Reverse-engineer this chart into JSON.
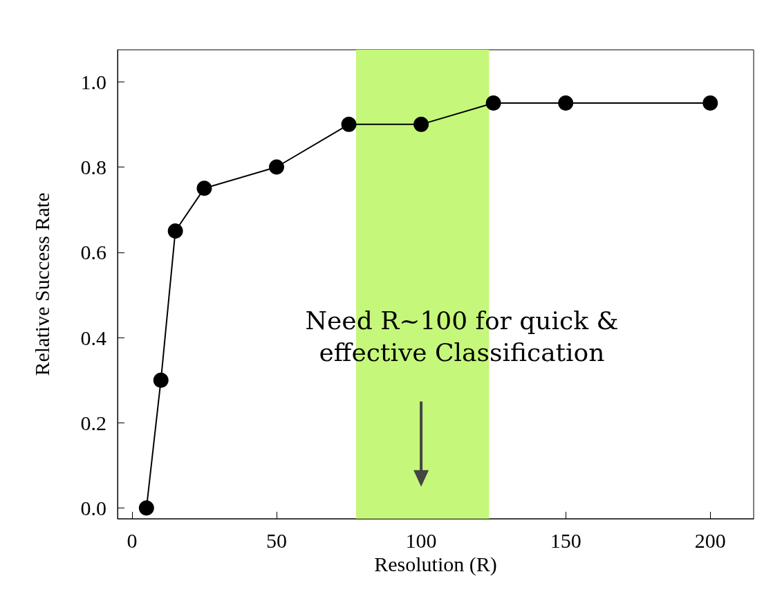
{
  "chart_data": {
    "type": "line",
    "xlabel": "Resolution (R)",
    "ylabel": "Relative Success Rate",
    "x": [
      5,
      10,
      15,
      25,
      50,
      75,
      100,
      125,
      150,
      200
    ],
    "series": [
      {
        "color": "#000000",
        "values": [
          0,
          0.3,
          0.65,
          0.75,
          0.8,
          0.9,
          0.9,
          0.95,
          0.95,
          0.95
        ]
      }
    ],
    "xlim": [
      -5,
      215
    ],
    "xticks": [
      0,
      50,
      100,
      150,
      200
    ],
    "ylim": [
      -0.025,
      1.075
    ],
    "yticks": [
      {
        "value": 0,
        "label": "0.0"
      },
      {
        "value": 0.2,
        "label": "0.2"
      },
      {
        "value": 0.4,
        "label": "0.4"
      },
      {
        "value": 0.6,
        "label": "0.6"
      },
      {
        "value": 0.8,
        "label": "0.8"
      },
      {
        "value": 1,
        "label": "1.0"
      }
    ],
    "bands": [
      {
        "axis": "x",
        "from": 77.5,
        "to": 123.5,
        "color": "#c5f77a"
      }
    ],
    "annotations": [
      "Need R~100 for quick & effective Classification"
    ],
    "marker": "circle",
    "line_style": "solid"
  }
}
